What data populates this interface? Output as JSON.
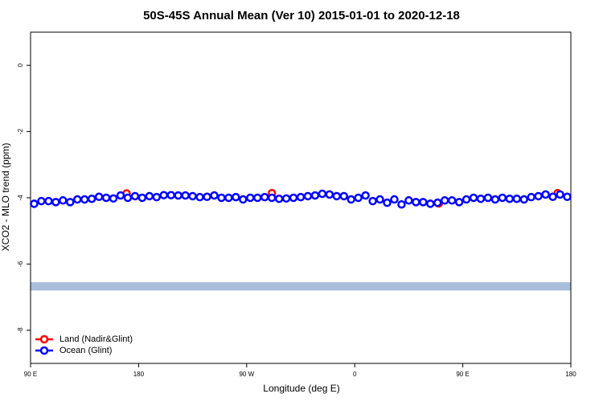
{
  "chart_data": {
    "type": "scatter",
    "title": "50S-45S Annual Mean (Ver 10)   2015-01-01 to 2020-12-18",
    "x_label": "Longitude (deg E)",
    "y_label": "XCO2 - MLO trend (ppm)",
    "xlim": [
      90,
      540
    ],
    "xticks": [
      {
        "value": 90,
        "label": "90 E"
      },
      180,
      {
        "value": 270,
        "label": "90 W"
      },
      {
        "value": 360,
        "label": "0"
      },
      {
        "value": 450,
        "label": "90 E"
      },
      {
        "value": 540,
        "label": "180"
      }
    ],
    "ylim": [
      -9,
      1
    ],
    "yticks": [
      0,
      -2,
      -4,
      -6,
      -8
    ],
    "band_ylim": [
      -6.8,
      -6.55
    ],
    "band_color": "#a9bedb",
    "legend": "bottom-left",
    "series": [
      {
        "name": "Land (Nadir&Glint)",
        "color": "#ff0000",
        "x": [
          170,
          291,
          430,
          529
        ],
        "values": [
          -3.87,
          -3.86,
          -4.17,
          -3.86
        ]
      },
      {
        "name": "Ocean (Glint)",
        "color": "#0000ff",
        "x": [
          93,
          99,
          105,
          111,
          117,
          123,
          129,
          135,
          141,
          147,
          153,
          159,
          165,
          171,
          177,
          183,
          189,
          195,
          201,
          207,
          213,
          219,
          225,
          231,
          237,
          243,
          249,
          255,
          261,
          267,
          273,
          279,
          285,
          291,
          297,
          303,
          309,
          315,
          321,
          327,
          333,
          339,
          345,
          351,
          357,
          363,
          369,
          375,
          381,
          387,
          393,
          399,
          405,
          411,
          417,
          423,
          429,
          435,
          441,
          447,
          453,
          459,
          465,
          471,
          477,
          483,
          489,
          495,
          501,
          507,
          513,
          519,
          525,
          531,
          537
        ],
        "values": [
          -4.18,
          -4.1,
          -4.1,
          -4.13,
          -4.08,
          -4.13,
          -4.05,
          -4.05,
          -4.03,
          -3.97,
          -4.0,
          -4.02,
          -3.93,
          -4.0,
          -3.95,
          -4.0,
          -3.95,
          -3.98,
          -3.92,
          -3.92,
          -3.93,
          -3.93,
          -3.95,
          -3.98,
          -3.97,
          -3.93,
          -4.0,
          -4.0,
          -3.98,
          -4.05,
          -4.0,
          -4.0,
          -3.98,
          -4.0,
          -4.03,
          -4.02,
          -4.0,
          -3.98,
          -3.95,
          -3.93,
          -3.88,
          -3.9,
          -3.95,
          -3.95,
          -4.05,
          -4.0,
          -3.93,
          -4.1,
          -4.05,
          -4.15,
          -4.05,
          -4.2,
          -4.08,
          -4.13,
          -4.13,
          -4.18,
          -4.15,
          -4.08,
          -4.08,
          -4.13,
          -4.05,
          -4.0,
          -4.03,
          -4.0,
          -4.05,
          -4.0,
          -4.03,
          -4.03,
          -4.05,
          -3.98,
          -3.95,
          -3.9,
          -3.97,
          -3.9,
          -3.97
        ]
      }
    ]
  }
}
